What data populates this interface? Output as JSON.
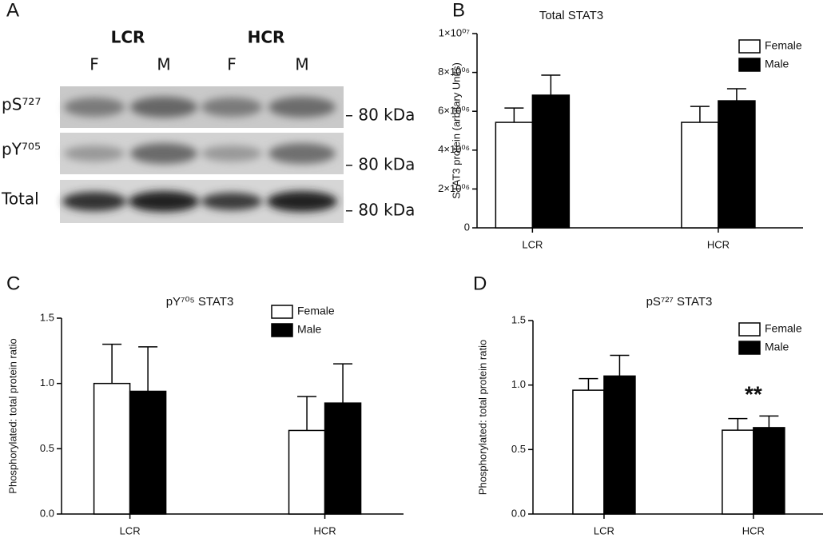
{
  "blot": {
    "panel": "A",
    "groups": [
      "LCR",
      "HCR"
    ],
    "lanes": [
      "F",
      "M",
      "F",
      "M"
    ],
    "rows": [
      {
        "name": "pS⁷²⁷",
        "size": "– 80 kDa"
      },
      {
        "name": "pY⁷⁰⁵",
        "size": "– 80 kDa"
      },
      {
        "name": "Total",
        "size": "– 80 kDa"
      }
    ]
  },
  "chart_data": [
    {
      "type": "bar",
      "panel": "B",
      "title": "Total STAT3",
      "ylabel": "STAT3 protein (arbitary Units)",
      "categories": [
        "LCR",
        "HCR"
      ],
      "series": [
        {
          "name": "Female",
          "color": "#ffffff",
          "values": [
            5430000,
            5430000
          ],
          "errors": [
            740000,
            820000
          ]
        },
        {
          "name": "Male",
          "color": "#000000",
          "values": [
            6830000,
            6540000
          ],
          "errors": [
            1030000,
            620000
          ]
        }
      ],
      "ylim": [
        0,
        10000000
      ],
      "yticks": [
        0,
        {
          "value": 2000000,
          "label": "2×10⁰⁶"
        },
        {
          "value": 4000000,
          "label": "4×10⁰⁶"
        },
        {
          "value": 6000000,
          "label": "6×10⁰⁶"
        },
        {
          "value": 8000000,
          "label": "8×10⁰⁶"
        },
        {
          "value": 10000000,
          "label": "1×10⁰⁷"
        }
      ],
      "grid": false,
      "legend": "upper right"
    },
    {
      "type": "bar",
      "panel": "C",
      "title": "pY⁷⁰⁵ STAT3",
      "ylabel": "Phosphorylated: total protein ratio",
      "categories": [
        "LCR",
        "HCR"
      ],
      "series": [
        {
          "name": "Female",
          "color": "#ffffff",
          "values": [
            1.0,
            0.64
          ],
          "errors": [
            0.3,
            0.26
          ]
        },
        {
          "name": "Male",
          "color": "#000000",
          "values": [
            0.94,
            0.85
          ],
          "errors": [
            0.34,
            0.3
          ]
        }
      ],
      "ylim": [
        0,
        1.5
      ],
      "yticks": [
        {
          "value": 0,
          "label": "0.0"
        },
        0.5,
        {
          "value": 1,
          "label": "1.0"
        },
        1.5
      ],
      "grid": false,
      "legend": "upper center"
    },
    {
      "type": "bar",
      "panel": "D",
      "title": "pS⁷²⁷ STAT3",
      "ylabel": "Phosphorylated: total protein ratio",
      "categories": [
        "LCR",
        "HCR"
      ],
      "series": [
        {
          "name": "Female",
          "color": "#ffffff",
          "values": [
            0.96,
            0.65
          ],
          "errors": [
            0.09,
            0.09
          ]
        },
        {
          "name": "Male",
          "color": "#000000",
          "values": [
            1.07,
            0.67
          ],
          "errors": [
            0.16,
            0.09
          ]
        }
      ],
      "ylim": [
        0,
        1.5
      ],
      "yticks": [
        {
          "value": 0,
          "label": "0.0"
        },
        0.5,
        {
          "value": 1,
          "label": "1.0"
        },
        1.5
      ],
      "annotation": "**",
      "grid": false,
      "legend": "upper right"
    }
  ]
}
